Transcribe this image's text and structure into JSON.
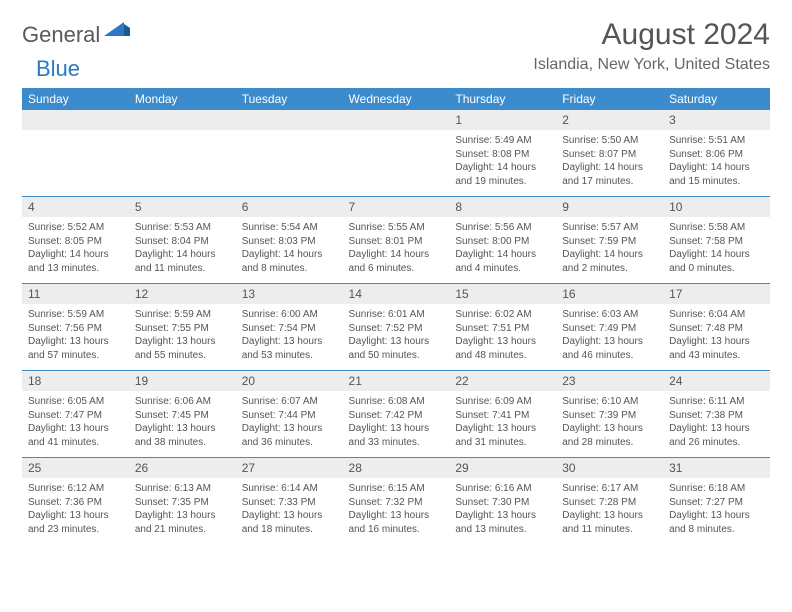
{
  "brand": {
    "part1": "General",
    "part2": "Blue"
  },
  "title": "August 2024",
  "location": "Islandia, New York, United States",
  "colors": {
    "header_bg": "#3b8bcd",
    "header_text": "#ffffff",
    "daynum_bg": "#ededed",
    "body_text": "#555555",
    "rule": "#3b8bcd"
  },
  "weekdays": [
    "Sunday",
    "Monday",
    "Tuesday",
    "Wednesday",
    "Thursday",
    "Friday",
    "Saturday"
  ],
  "weeks": [
    {
      "nums": [
        "",
        "",
        "",
        "",
        "1",
        "2",
        "3"
      ],
      "cells": [
        null,
        null,
        null,
        null,
        {
          "sunrise": "5:49 AM",
          "sunset": "8:08 PM",
          "dl": "14 hours and 19 minutes."
        },
        {
          "sunrise": "5:50 AM",
          "sunset": "8:07 PM",
          "dl": "14 hours and 17 minutes."
        },
        {
          "sunrise": "5:51 AM",
          "sunset": "8:06 PM",
          "dl": "14 hours and 15 minutes."
        }
      ]
    },
    {
      "nums": [
        "4",
        "5",
        "6",
        "7",
        "8",
        "9",
        "10"
      ],
      "cells": [
        {
          "sunrise": "5:52 AM",
          "sunset": "8:05 PM",
          "dl": "14 hours and 13 minutes."
        },
        {
          "sunrise": "5:53 AM",
          "sunset": "8:04 PM",
          "dl": "14 hours and 11 minutes."
        },
        {
          "sunrise": "5:54 AM",
          "sunset": "8:03 PM",
          "dl": "14 hours and 8 minutes."
        },
        {
          "sunrise": "5:55 AM",
          "sunset": "8:01 PM",
          "dl": "14 hours and 6 minutes."
        },
        {
          "sunrise": "5:56 AM",
          "sunset": "8:00 PM",
          "dl": "14 hours and 4 minutes."
        },
        {
          "sunrise": "5:57 AM",
          "sunset": "7:59 PM",
          "dl": "14 hours and 2 minutes."
        },
        {
          "sunrise": "5:58 AM",
          "sunset": "7:58 PM",
          "dl": "14 hours and 0 minutes."
        }
      ]
    },
    {
      "nums": [
        "11",
        "12",
        "13",
        "14",
        "15",
        "16",
        "17"
      ],
      "cells": [
        {
          "sunrise": "5:59 AM",
          "sunset": "7:56 PM",
          "dl": "13 hours and 57 minutes."
        },
        {
          "sunrise": "5:59 AM",
          "sunset": "7:55 PM",
          "dl": "13 hours and 55 minutes."
        },
        {
          "sunrise": "6:00 AM",
          "sunset": "7:54 PM",
          "dl": "13 hours and 53 minutes."
        },
        {
          "sunrise": "6:01 AM",
          "sunset": "7:52 PM",
          "dl": "13 hours and 50 minutes."
        },
        {
          "sunrise": "6:02 AM",
          "sunset": "7:51 PM",
          "dl": "13 hours and 48 minutes."
        },
        {
          "sunrise": "6:03 AM",
          "sunset": "7:49 PM",
          "dl": "13 hours and 46 minutes."
        },
        {
          "sunrise": "6:04 AM",
          "sunset": "7:48 PM",
          "dl": "13 hours and 43 minutes."
        }
      ]
    },
    {
      "nums": [
        "18",
        "19",
        "20",
        "21",
        "22",
        "23",
        "24"
      ],
      "cells": [
        {
          "sunrise": "6:05 AM",
          "sunset": "7:47 PM",
          "dl": "13 hours and 41 minutes."
        },
        {
          "sunrise": "6:06 AM",
          "sunset": "7:45 PM",
          "dl": "13 hours and 38 minutes."
        },
        {
          "sunrise": "6:07 AM",
          "sunset": "7:44 PM",
          "dl": "13 hours and 36 minutes."
        },
        {
          "sunrise": "6:08 AM",
          "sunset": "7:42 PM",
          "dl": "13 hours and 33 minutes."
        },
        {
          "sunrise": "6:09 AM",
          "sunset": "7:41 PM",
          "dl": "13 hours and 31 minutes."
        },
        {
          "sunrise": "6:10 AM",
          "sunset": "7:39 PM",
          "dl": "13 hours and 28 minutes."
        },
        {
          "sunrise": "6:11 AM",
          "sunset": "7:38 PM",
          "dl": "13 hours and 26 minutes."
        }
      ]
    },
    {
      "nums": [
        "25",
        "26",
        "27",
        "28",
        "29",
        "30",
        "31"
      ],
      "cells": [
        {
          "sunrise": "6:12 AM",
          "sunset": "7:36 PM",
          "dl": "13 hours and 23 minutes."
        },
        {
          "sunrise": "6:13 AM",
          "sunset": "7:35 PM",
          "dl": "13 hours and 21 minutes."
        },
        {
          "sunrise": "6:14 AM",
          "sunset": "7:33 PM",
          "dl": "13 hours and 18 minutes."
        },
        {
          "sunrise": "6:15 AM",
          "sunset": "7:32 PM",
          "dl": "13 hours and 16 minutes."
        },
        {
          "sunrise": "6:16 AM",
          "sunset": "7:30 PM",
          "dl": "13 hours and 13 minutes."
        },
        {
          "sunrise": "6:17 AM",
          "sunset": "7:28 PM",
          "dl": "13 hours and 11 minutes."
        },
        {
          "sunrise": "6:18 AM",
          "sunset": "7:27 PM",
          "dl": "13 hours and 8 minutes."
        }
      ]
    }
  ],
  "labels": {
    "sunrise": "Sunrise:",
    "sunset": "Sunset:",
    "daylight": "Daylight:"
  }
}
